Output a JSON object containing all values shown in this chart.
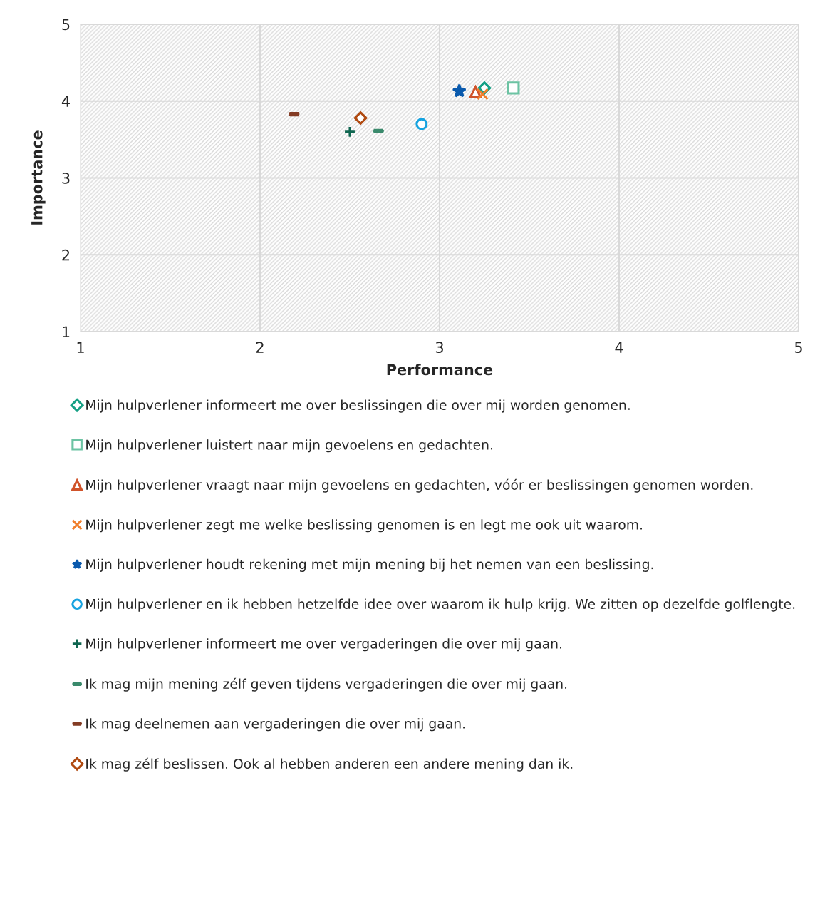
{
  "chart_data": {
    "type": "scatter",
    "xlabel": "Performance",
    "ylabel": "Importance",
    "xlim": [
      1,
      5
    ],
    "ylim": [
      1,
      5
    ],
    "xticks": [
      1,
      2,
      3,
      4,
      5
    ],
    "yticks": [
      1,
      2,
      3,
      4,
      5
    ],
    "grid": true,
    "legend": "bottom",
    "series": [
      {
        "name": "Mijn hulpverlener informeert me over beslissingen die over mij worden genomen.",
        "color": "#16a085",
        "marker": "diamond",
        "x": [
          3.25
        ],
        "values": [
          4.17
        ]
      },
      {
        "name": "Mijn hulpverlener luistert naar mijn gevoelens en gedachten.",
        "color": "#6cc3a3",
        "marker": "square",
        "x": [
          3.41
        ],
        "values": [
          4.17
        ]
      },
      {
        "name": "Mijn hulpverlener vraagt naar mijn gevoelens en gedachten, vóór er beslissingen genomen worden.",
        "color": "#d0532a",
        "marker": "triangle",
        "x": [
          3.2
        ],
        "values": [
          4.12
        ]
      },
      {
        "name": "Mijn hulpverlener zegt me welke beslissing genomen is en legt me ook uit waarom.",
        "color": "#f07f2c",
        "marker": "cross",
        "x": [
          3.24
        ],
        "values": [
          4.09
        ]
      },
      {
        "name": "Mijn hulpverlener houdt rekening met mijn mening bij het nemen van een beslissing.",
        "color": "#0a5aad",
        "marker": "star",
        "x": [
          3.11
        ],
        "values": [
          4.13
        ]
      },
      {
        "name": "Mijn hulpverlener en ik hebben hetzelfde idee over waarom ik hulp krijg. We zitten op dezelfde golflengte.",
        "color": "#16a3e0",
        "marker": "circle",
        "x": [
          2.9
        ],
        "values": [
          3.7
        ]
      },
      {
        "name": "Mijn hulpverlener informeert me over vergaderingen die over mij gaan.",
        "color": "#0f6650",
        "marker": "plus",
        "x": [
          2.5
        ],
        "values": [
          3.6
        ]
      },
      {
        "name": "Ik mag mijn mening zélf geven tijdens vergaderingen die over mij gaan.",
        "color": "#3a8a6c",
        "x": [
          2.66
        ],
        "values": [
          3.61
        ]
      },
      {
        "name": "Ik mag deelnemen aan vergaderingen die over mij gaan.",
        "color": "#843c24",
        "x": [
          2.19
        ],
        "values": [
          3.83
        ]
      },
      {
        "name": "Ik mag zélf beslissen. Ook al hebben anderen een andere mening dan ik.",
        "color": "#b04a10",
        "marker": "diamond",
        "x": [
          2.56
        ],
        "values": [
          3.78
        ]
      }
    ]
  }
}
